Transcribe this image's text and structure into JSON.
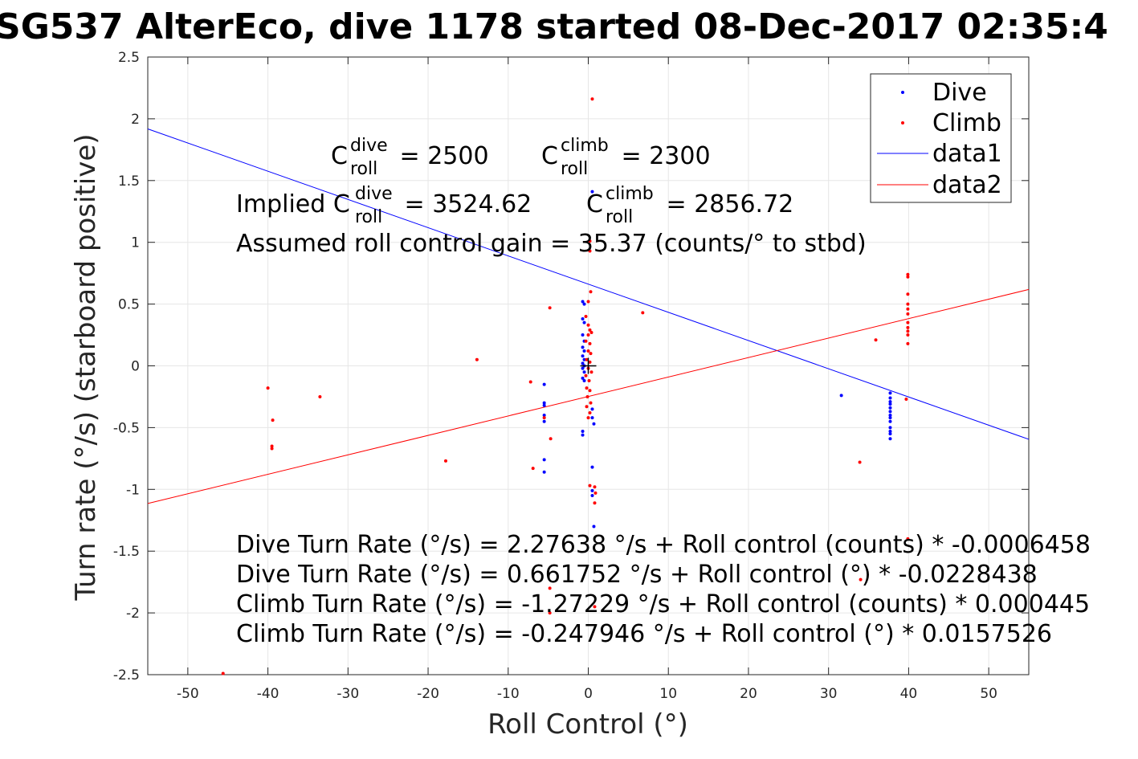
{
  "chart_data": {
    "type": "scatter",
    "title": "SG537 AlterEco, dive 1178 started 08-Dec-2017 02:35:4",
    "xlabel": "Roll Control (°)",
    "ylabel": "Turn rate (°/s) (starboard positive)",
    "xlim": [
      -55,
      55
    ],
    "ylim": [
      -2.5,
      2.5
    ],
    "xticks": [
      -50,
      -40,
      -30,
      -20,
      -10,
      0,
      10,
      20,
      30,
      40,
      50
    ],
    "yticks": [
      -2.5,
      -2,
      -1.5,
      -1,
      -0.5,
      0,
      0.5,
      1,
      1.5,
      2,
      2.5
    ],
    "grid": true,
    "legend_position": "top-right",
    "colors": {
      "dive": "#0000ff",
      "climb": "#ff0000"
    },
    "series": [
      {
        "name": "Dive",
        "kind": "points",
        "color": "#0000ff",
        "points": [
          [
            -5.5,
            -0.15
          ],
          [
            -5.5,
            -0.3
          ],
          [
            -5.5,
            -0.32
          ],
          [
            -5.5,
            -0.4
          ],
          [
            -5.5,
            -0.45
          ],
          [
            -5.5,
            -0.76
          ],
          [
            -5.5,
            -0.86
          ],
          [
            -0.7,
            0.52
          ],
          [
            -0.5,
            0.5
          ],
          [
            -0.7,
            0.38
          ],
          [
            -0.5,
            0.35
          ],
          [
            -0.7,
            0.25
          ],
          [
            -0.5,
            0.2
          ],
          [
            -0.7,
            0.15
          ],
          [
            -0.5,
            0.12
          ],
          [
            -0.7,
            0.08
          ],
          [
            -0.5,
            0.05
          ],
          [
            -0.7,
            0.02
          ],
          [
            -0.5,
            0.0
          ],
          [
            -0.7,
            -0.02
          ],
          [
            -0.5,
            -0.05
          ],
          [
            -0.7,
            -0.1
          ],
          [
            -0.5,
            -0.12
          ],
          [
            -0.7,
            -0.53
          ],
          [
            -0.7,
            -0.56
          ],
          [
            0.5,
            1.41
          ],
          [
            0.5,
            -0.35
          ],
          [
            0.5,
            -0.42
          ],
          [
            0.7,
            -0.47
          ],
          [
            0.5,
            -0.82
          ],
          [
            0.5,
            -1.01
          ],
          [
            0.5,
            -1.05
          ],
          [
            0.7,
            -1.3
          ],
          [
            31.6,
            -0.24
          ],
          [
            37.7,
            -0.22
          ],
          [
            37.7,
            -0.26
          ],
          [
            37.7,
            -0.29
          ],
          [
            37.7,
            -0.31
          ],
          [
            37.7,
            -0.34
          ],
          [
            37.7,
            -0.37
          ],
          [
            37.7,
            -0.4
          ],
          [
            37.7,
            -0.42
          ],
          [
            37.7,
            -0.45
          ],
          [
            37.7,
            -0.5
          ],
          [
            37.7,
            -0.53
          ],
          [
            37.7,
            -0.55
          ],
          [
            37.7,
            -0.59
          ]
        ]
      },
      {
        "name": "Climb",
        "kind": "points",
        "color": "#ff0000",
        "points": [
          [
            -45.6,
            -2.49
          ],
          [
            -40.0,
            -0.18
          ],
          [
            -39.4,
            -0.44
          ],
          [
            -39.5,
            -0.65
          ],
          [
            -39.5,
            -0.67
          ],
          [
            -33.5,
            -0.25
          ],
          [
            -17.8,
            -0.77
          ],
          [
            -13.9,
            0.05
          ],
          [
            -7.2,
            -0.13
          ],
          [
            -6.9,
            -0.83
          ],
          [
            -4.8,
            0.47
          ],
          [
            -4.7,
            -0.59
          ],
          [
            -5.5,
            -0.42
          ],
          [
            -4.8,
            -1.8
          ],
          [
            -4.8,
            -2.0
          ],
          [
            0.5,
            2.16
          ],
          [
            0.2,
            1.01
          ],
          [
            0.2,
            0.93
          ],
          [
            0.3,
            0.6
          ],
          [
            0.0,
            0.52
          ],
          [
            -0.3,
            0.4
          ],
          [
            0.0,
            0.33
          ],
          [
            0.2,
            0.29
          ],
          [
            0.4,
            0.27
          ],
          [
            0.0,
            0.25
          ],
          [
            -0.3,
            0.2
          ],
          [
            0.2,
            0.18
          ],
          [
            0.0,
            0.12
          ],
          [
            0.3,
            0.1
          ],
          [
            -0.2,
            0.05
          ],
          [
            0.2,
            0.03
          ],
          [
            0.0,
            -0.02
          ],
          [
            0.4,
            -0.05
          ],
          [
            -0.3,
            -0.08
          ],
          [
            0.1,
            -0.12
          ],
          [
            -0.2,
            -0.18
          ],
          [
            0.2,
            -0.2
          ],
          [
            -0.1,
            -0.25
          ],
          [
            0.3,
            -0.3
          ],
          [
            -0.2,
            -0.33
          ],
          [
            0.2,
            -0.38
          ],
          [
            0.0,
            -0.42
          ],
          [
            0.2,
            -0.97
          ],
          [
            0.8,
            -0.98
          ],
          [
            0.9,
            -1.03
          ],
          [
            0.8,
            -1.11
          ],
          [
            0.8,
            -1.95
          ],
          [
            6.8,
            0.43
          ],
          [
            33.9,
            -0.78
          ],
          [
            34.0,
            -1.73
          ],
          [
            35.9,
            0.21
          ],
          [
            39.9,
            0.74
          ],
          [
            39.9,
            0.72
          ],
          [
            39.9,
            0.58
          ],
          [
            39.9,
            0.5
          ],
          [
            39.9,
            0.46
          ],
          [
            39.9,
            0.42
          ],
          [
            39.9,
            0.35
          ],
          [
            39.9,
            0.31
          ],
          [
            39.9,
            0.28
          ],
          [
            39.9,
            0.25
          ],
          [
            39.9,
            0.18
          ],
          [
            39.7,
            -0.27
          ],
          [
            39.9,
            -1.4
          ]
        ]
      },
      {
        "name": "data1",
        "kind": "line",
        "color": "#0000ff",
        "intercept": 0.661752,
        "slope": -0.0228438
      },
      {
        "name": "data2",
        "kind": "line",
        "color": "#ff0000",
        "intercept": -0.247946,
        "slope": 0.0157526
      }
    ],
    "marker": {
      "x": 0.0,
      "y": 0.0,
      "symbol": "+"
    },
    "annotations": {
      "c_roll_dive": {
        "base": "C",
        "sup": "dive",
        "sub": "roll",
        "value": " = 2500"
      },
      "c_roll_climb": {
        "base": "C",
        "sup": "climb",
        "sub": "roll",
        "value": " = 2300"
      },
      "implied_prefix": "Implied C",
      "implied_dive": {
        "sup": "dive",
        "sub": "roll",
        "value": " = 3524.62"
      },
      "implied_climb": {
        "base": "C",
        "sup": "climb",
        "sub": "roll",
        "value": " = 2856.72"
      },
      "gain": "Assumed roll control gain = 35.37 (counts/° to stbd)",
      "equations": [
        "Dive Turn Rate (°/s) = 2.27638 °/s + Roll control (counts) * -0.0006458",
        "Dive Turn Rate (°/s) = 0.661752 °/s + Roll control (°) * -0.0228438",
        "Climb Turn Rate (°/s) = -1.27229 °/s + Roll control (counts) * 0.000445",
        "Climb Turn Rate (°/s) = -0.247946 °/s + Roll control (°) * 0.0157526"
      ]
    }
  }
}
